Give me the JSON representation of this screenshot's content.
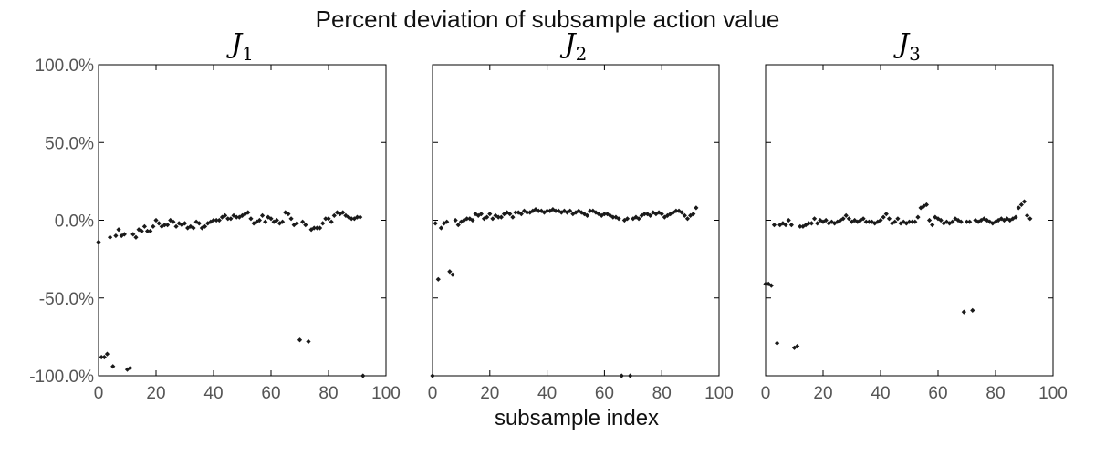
{
  "title": "Percent deviation of subsample action value",
  "xlabel": "subsample index",
  "colors": {
    "marker": "#1a1a1a",
    "axis": "#000000",
    "tick_label": "#555555"
  },
  "chart_data": [
    {
      "type": "scatter",
      "title": "J",
      "title_subscript": "1",
      "xlim": [
        0,
        100
      ],
      "ylim": [
        -100,
        100
      ],
      "x_ticks": [
        0,
        20,
        40,
        60,
        80,
        100
      ],
      "x_tick_labels": [
        "0",
        "20",
        "40",
        "60",
        "80",
        "100"
      ],
      "y_ticks": [
        100,
        50,
        0,
        -50,
        -100
      ],
      "y_tick_labels": [
        "100.0%",
        "50.0%",
        "0.0%",
        "-50.0%",
        "-100.0%"
      ],
      "grid": false,
      "points": [
        [
          0,
          -14
        ],
        [
          1,
          -88
        ],
        [
          2,
          -88
        ],
        [
          3,
          -86
        ],
        [
          4,
          -11
        ],
        [
          5,
          -94
        ],
        [
          6,
          -10
        ],
        [
          7,
          -6
        ],
        [
          8,
          -10
        ],
        [
          9,
          -9
        ],
        [
          10,
          -96
        ],
        [
          11,
          -95
        ],
        [
          12,
          -9
        ],
        [
          13,
          -11
        ],
        [
          14,
          -6
        ],
        [
          15,
          -7
        ],
        [
          16,
          -4
        ],
        [
          17,
          -7
        ],
        [
          18,
          -7
        ],
        [
          19,
          -4
        ],
        [
          20,
          0
        ],
        [
          21,
          -2
        ],
        [
          22,
          -4
        ],
        [
          23,
          -3
        ],
        [
          24,
          -3
        ],
        [
          25,
          0
        ],
        [
          26,
          -1
        ],
        [
          27,
          -4
        ],
        [
          28,
          -2
        ],
        [
          29,
          -3
        ],
        [
          30,
          -2
        ],
        [
          31,
          -5
        ],
        [
          32,
          -4
        ],
        [
          33,
          -5
        ],
        [
          34,
          -1
        ],
        [
          35,
          -2
        ],
        [
          36,
          -5
        ],
        [
          37,
          -4
        ],
        [
          38,
          -2
        ],
        [
          39,
          -1
        ],
        [
          40,
          0
        ],
        [
          41,
          0
        ],
        [
          42,
          0
        ],
        [
          43,
          2
        ],
        [
          44,
          3
        ],
        [
          45,
          1
        ],
        [
          46,
          1
        ],
        [
          47,
          3
        ],
        [
          48,
          2
        ],
        [
          49,
          2
        ],
        [
          50,
          3
        ],
        [
          51,
          4
        ],
        [
          52,
          5
        ],
        [
          53,
          1
        ],
        [
          54,
          -2
        ],
        [
          55,
          -1
        ],
        [
          56,
          0
        ],
        [
          57,
          3
        ],
        [
          58,
          -1
        ],
        [
          59,
          2
        ],
        [
          60,
          1
        ],
        [
          61,
          -1
        ],
        [
          62,
          0
        ],
        [
          63,
          -2
        ],
        [
          64,
          -1
        ],
        [
          65,
          5
        ],
        [
          66,
          4
        ],
        [
          67,
          1
        ],
        [
          68,
          -3
        ],
        [
          69,
          -2
        ],
        [
          70,
          -77
        ],
        [
          71,
          -1
        ],
        [
          72,
          -3
        ],
        [
          73,
          -78
        ],
        [
          74,
          -6
        ],
        [
          75,
          -5
        ],
        [
          76,
          -5
        ],
        [
          77,
          -5
        ],
        [
          78,
          -2
        ],
        [
          79,
          1
        ],
        [
          80,
          1
        ],
        [
          81,
          -1
        ],
        [
          82,
          3
        ],
        [
          83,
          5
        ],
        [
          84,
          4
        ],
        [
          85,
          5
        ],
        [
          86,
          3
        ],
        [
          87,
          2
        ],
        [
          88,
          1
        ],
        [
          89,
          1
        ],
        [
          90,
          2
        ],
        [
          91,
          2
        ],
        [
          92,
          -100
        ]
      ]
    },
    {
      "type": "scatter",
      "title": "J",
      "title_subscript": "2",
      "xlim": [
        0,
        100
      ],
      "ylim": [
        -100,
        100
      ],
      "x_ticks": [
        0,
        20,
        40,
        60,
        80,
        100
      ],
      "x_tick_labels": [
        "0",
        "20",
        "40",
        "60",
        "80",
        "100"
      ],
      "y_ticks": [
        100,
        50,
        0,
        -50,
        -100
      ],
      "y_tick_labels": [
        "",
        "",
        "",
        "",
        ""
      ],
      "grid": false,
      "points": [
        [
          0,
          -100
        ],
        [
          1,
          -2
        ],
        [
          2,
          -38
        ],
        [
          3,
          -5
        ],
        [
          4,
          -2
        ],
        [
          5,
          -1
        ],
        [
          6,
          -33
        ],
        [
          7,
          -35
        ],
        [
          8,
          0
        ],
        [
          9,
          -3
        ],
        [
          10,
          -1
        ],
        [
          11,
          0
        ],
        [
          12,
          1
        ],
        [
          13,
          1
        ],
        [
          14,
          0
        ],
        [
          15,
          4
        ],
        [
          16,
          3
        ],
        [
          17,
          4
        ],
        [
          18,
          1
        ],
        [
          19,
          2
        ],
        [
          20,
          4
        ],
        [
          21,
          1
        ],
        [
          22,
          3
        ],
        [
          23,
          2
        ],
        [
          24,
          2
        ],
        [
          25,
          4
        ],
        [
          26,
          5
        ],
        [
          27,
          4
        ],
        [
          28,
          2
        ],
        [
          29,
          5
        ],
        [
          30,
          5
        ],
        [
          31,
          4
        ],
        [
          32,
          6
        ],
        [
          33,
          5
        ],
        [
          34,
          5
        ],
        [
          35,
          6
        ],
        [
          36,
          7
        ],
        [
          37,
          6
        ],
        [
          38,
          6
        ],
        [
          39,
          5
        ],
        [
          40,
          6
        ],
        [
          41,
          6
        ],
        [
          42,
          7
        ],
        [
          43,
          6
        ],
        [
          44,
          6
        ],
        [
          45,
          5
        ],
        [
          46,
          6
        ],
        [
          47,
          5
        ],
        [
          48,
          6
        ],
        [
          49,
          4
        ],
        [
          50,
          5
        ],
        [
          51,
          6
        ],
        [
          52,
          5
        ],
        [
          53,
          4
        ],
        [
          54,
          3
        ],
        [
          55,
          6
        ],
        [
          56,
          6
        ],
        [
          57,
          5
        ],
        [
          58,
          4
        ],
        [
          59,
          3
        ],
        [
          60,
          4
        ],
        [
          61,
          4
        ],
        [
          62,
          3
        ],
        [
          63,
          2
        ],
        [
          64,
          2
        ],
        [
          65,
          1
        ],
        [
          66,
          -100
        ],
        [
          67,
          0
        ],
        [
          68,
          1
        ],
        [
          69,
          -100
        ],
        [
          70,
          1
        ],
        [
          71,
          2
        ],
        [
          72,
          1
        ],
        [
          73,
          3
        ],
        [
          74,
          4
        ],
        [
          75,
          4
        ],
        [
          76,
          3
        ],
        [
          77,
          5
        ],
        [
          78,
          4
        ],
        [
          79,
          5
        ],
        [
          80,
          4
        ],
        [
          81,
          2
        ],
        [
          82,
          3
        ],
        [
          83,
          4
        ],
        [
          84,
          5
        ],
        [
          85,
          6
        ],
        [
          86,
          6
        ],
        [
          87,
          5
        ],
        [
          88,
          3
        ],
        [
          89,
          1
        ],
        [
          90,
          3
        ],
        [
          91,
          4
        ],
        [
          92,
          8
        ]
      ]
    },
    {
      "type": "scatter",
      "title": "J",
      "title_subscript": "3",
      "xlim": [
        0,
        100
      ],
      "ylim": [
        -100,
        100
      ],
      "x_ticks": [
        0,
        20,
        40,
        60,
        80,
        100
      ],
      "x_tick_labels": [
        "0",
        "20",
        "40",
        "60",
        "80",
        "100"
      ],
      "y_ticks": [
        100,
        50,
        0,
        -50,
        -100
      ],
      "y_tick_labels": [
        "",
        "",
        "",
        "",
        ""
      ],
      "grid": false,
      "points": [
        [
          0,
          -41
        ],
        [
          1,
          -41
        ],
        [
          2,
          -42
        ],
        [
          3,
          -3
        ],
        [
          4,
          -79
        ],
        [
          5,
          -3
        ],
        [
          6,
          -2
        ],
        [
          7,
          -3
        ],
        [
          8,
          0
        ],
        [
          9,
          -3
        ],
        [
          10,
          -82
        ],
        [
          11,
          -81
        ],
        [
          12,
          -4
        ],
        [
          13,
          -4
        ],
        [
          14,
          -3
        ],
        [
          15,
          -2
        ],
        [
          16,
          -2
        ],
        [
          17,
          1
        ],
        [
          18,
          -2
        ],
        [
          19,
          0
        ],
        [
          20,
          -1
        ],
        [
          21,
          0
        ],
        [
          22,
          -2
        ],
        [
          23,
          -1
        ],
        [
          24,
          -2
        ],
        [
          25,
          -1
        ],
        [
          26,
          0
        ],
        [
          27,
          1
        ],
        [
          28,
          3
        ],
        [
          29,
          1
        ],
        [
          30,
          -1
        ],
        [
          31,
          0
        ],
        [
          32,
          -1
        ],
        [
          33,
          0
        ],
        [
          34,
          1
        ],
        [
          35,
          -1
        ],
        [
          36,
          -1
        ],
        [
          37,
          -1
        ],
        [
          38,
          -2
        ],
        [
          39,
          -1
        ],
        [
          40,
          0
        ],
        [
          41,
          2
        ],
        [
          42,
          4
        ],
        [
          43,
          1
        ],
        [
          44,
          -2
        ],
        [
          45,
          -1
        ],
        [
          46,
          1
        ],
        [
          47,
          -2
        ],
        [
          48,
          -1
        ],
        [
          49,
          -2
        ],
        [
          50,
          -1
        ],
        [
          51,
          -1
        ],
        [
          52,
          -1
        ],
        [
          53,
          2
        ],
        [
          54,
          8
        ],
        [
          55,
          9
        ],
        [
          56,
          10
        ],
        [
          57,
          0
        ],
        [
          58,
          -3
        ],
        [
          59,
          2
        ],
        [
          60,
          1
        ],
        [
          61,
          0
        ],
        [
          62,
          -2
        ],
        [
          63,
          -1
        ],
        [
          64,
          -2
        ],
        [
          65,
          -1
        ],
        [
          66,
          1
        ],
        [
          67,
          0
        ],
        [
          68,
          -1
        ],
        [
          69,
          -59
        ],
        [
          70,
          -1
        ],
        [
          71,
          -1
        ],
        [
          72,
          -58
        ],
        [
          73,
          0
        ],
        [
          74,
          -1
        ],
        [
          75,
          0
        ],
        [
          76,
          1
        ],
        [
          77,
          0
        ],
        [
          78,
          -1
        ],
        [
          79,
          -2
        ],
        [
          80,
          -1
        ],
        [
          81,
          0
        ],
        [
          82,
          1
        ],
        [
          83,
          0
        ],
        [
          84,
          1
        ],
        [
          85,
          0
        ],
        [
          86,
          1
        ],
        [
          87,
          2
        ],
        [
          88,
          8
        ],
        [
          89,
          10
        ],
        [
          90,
          12
        ],
        [
          91,
          3
        ],
        [
          92,
          1
        ]
      ]
    }
  ]
}
